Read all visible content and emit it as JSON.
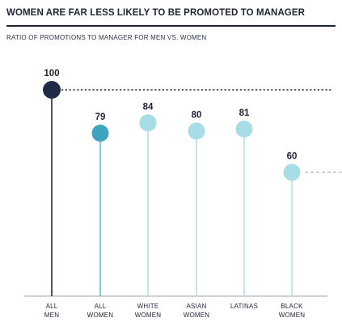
{
  "header": {
    "title": "WOMEN ARE FAR LESS LIKELY TO BE PROMOTED TO MANAGER",
    "subtitle": "RATIO OF PROMOTIONS TO MANAGER FOR MEN VS. WOMEN"
  },
  "chart_data": {
    "type": "lollipop",
    "title": "WOMEN ARE FAR LESS LIKELY TO BE PROMOTED TO MANAGER",
    "subtitle": "RATIO OF PROMOTIONS TO MANAGER FOR MEN VS. WOMEN",
    "ylim": [
      0,
      100
    ],
    "grid": false,
    "categories": [
      [
        "ALL",
        "MEN"
      ],
      [
        "ALL",
        "WOMEN"
      ],
      [
        "WHITE",
        "WOMEN"
      ],
      [
        "ASIAN",
        "WOMEN"
      ],
      [
        "LATINAS"
      ],
      [
        "BLACK",
        "WOMEN"
      ]
    ],
    "values": [
      100,
      79,
      84,
      80,
      81,
      60
    ],
    "value_labels": [
      "100",
      "79",
      "84",
      "80",
      "81",
      "60"
    ],
    "colors": {
      "stem": [
        "#1f2a44",
        "#4fb3c8",
        "#a6dde6",
        "#a6dde6",
        "#a6dde6",
        "#a6dde6"
      ],
      "dot": [
        "#1f2a44",
        "#3fa3bd",
        "#a6dde6",
        "#a6dde6",
        "#a6dde6",
        "#a6dde6"
      ],
      "reference_line": "#1f2a44",
      "secondary_reference_line": "#b9c2cc",
      "axis": "#9aa4ad"
    },
    "reference_lines": [
      {
        "value": 100,
        "style": "dotted"
      },
      {
        "value": 60,
        "style": "dashed"
      }
    ]
  }
}
